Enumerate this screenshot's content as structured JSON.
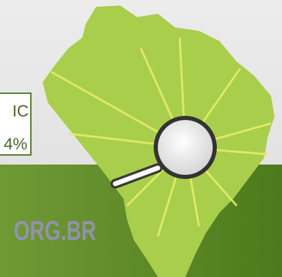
{
  "callout": {
    "line1": "IC",
    "line2": "4%"
  },
  "footer": {
    "url": "ORG.BR"
  }
}
